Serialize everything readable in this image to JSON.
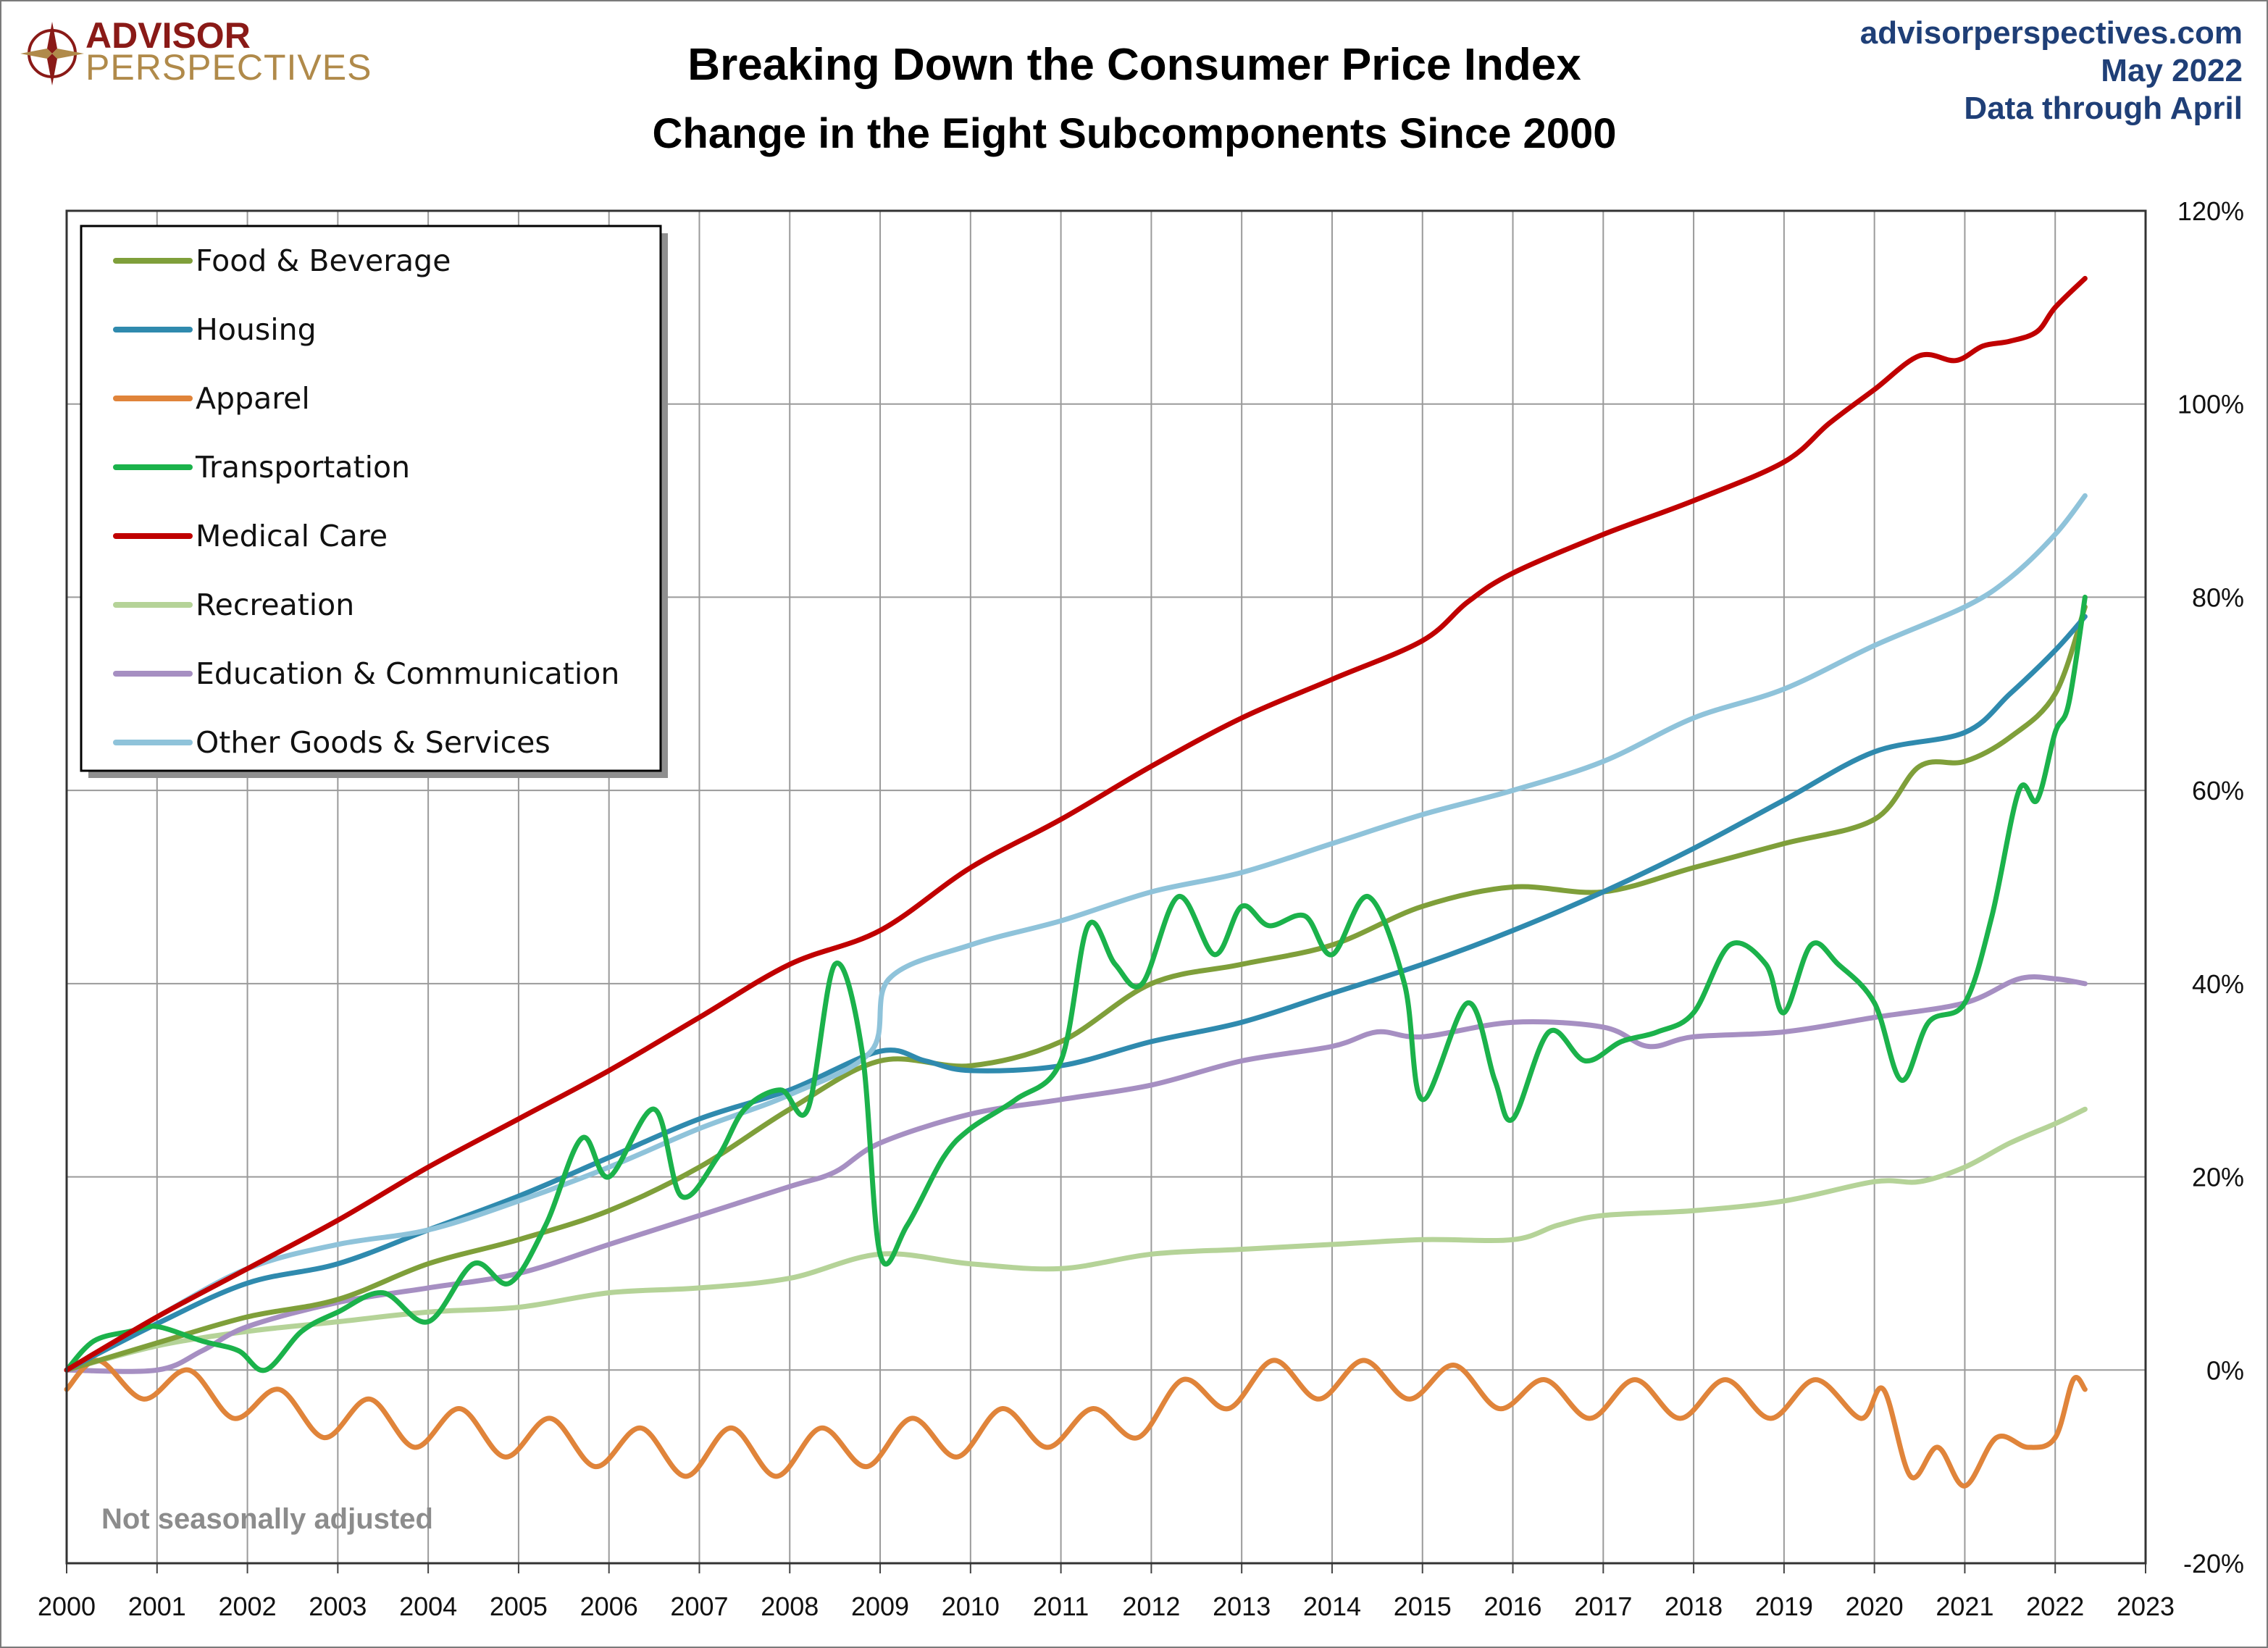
{
  "header": {
    "logo_line1": "ADVISOR",
    "logo_line2": "PERSPECTIVES",
    "site": "advisorperspectives.com",
    "date": "May 2022",
    "data_note": "Data through April"
  },
  "note": "Not seasonally adjusted",
  "colors": {
    "food": "#7f9f3a",
    "housing": "#2f8aae",
    "apparel": "#e0843a",
    "transportation": "#1bb24b",
    "medical": "#c00000",
    "recreation": "#b5d398",
    "education": "#a68fc2",
    "other": "#8fc3da",
    "header_blue": "#1f3f77",
    "grid": "#9a9a9a"
  },
  "chart_data": {
    "type": "line",
    "title": "Breaking Down the Consumer Price Index",
    "subtitle": "Change in the Eight Subcomponents Since 2000",
    "xlim": [
      2000,
      2023
    ],
    "ylim": [
      -20,
      120
    ],
    "x_ticks": [
      "2000",
      "2001",
      "2002",
      "2003",
      "2004",
      "2005",
      "2006",
      "2007",
      "2008",
      "2009",
      "2010",
      "2011",
      "2012",
      "2013",
      "2014",
      "2015",
      "2016",
      "2017",
      "2018",
      "2019",
      "2020",
      "2021",
      "2022",
      "2023"
    ],
    "y_ticks": [
      "-20%",
      "0%",
      "20%",
      "40%",
      "60%",
      "80%",
      "100%",
      "120%"
    ],
    "y_axis_side": "right",
    "grid": true,
    "legend_position": "top-left",
    "series": [
      {
        "key": "food",
        "name": "Food & Beverage",
        "x": [
          2000,
          2001,
          2002,
          2003,
          2004,
          2005,
          2006,
          2007,
          2008,
          2009,
          2010,
          2011,
          2012,
          2013,
          2014,
          2015,
          2016,
          2017,
          2018,
          2019,
          2020,
          2020.5,
          2021,
          2021.5,
          2022,
          2022.33
        ],
        "values": [
          0,
          2.8,
          5.5,
          7.3,
          11,
          13.5,
          16.5,
          21,
          27,
          32,
          31.5,
          34,
          40,
          42,
          44,
          48,
          50,
          49.5,
          52,
          54.5,
          57,
          62.5,
          63,
          65.5,
          70,
          79
        ]
      },
      {
        "key": "housing",
        "name": "Housing",
        "x": [
          2000,
          2001,
          2002,
          2003,
          2004,
          2005,
          2006,
          2007,
          2008,
          2009,
          2009.5,
          2010,
          2011,
          2012,
          2013,
          2014,
          2015,
          2016,
          2017,
          2018,
          2019,
          2020,
          2021,
          2021.5,
          2022,
          2022.33
        ],
        "values": [
          0,
          4.8,
          9,
          11,
          14.5,
          18,
          22,
          26,
          29,
          33,
          32,
          31,
          31.5,
          34,
          36,
          39,
          42,
          45.5,
          49.5,
          54,
          59,
          64,
          66,
          70,
          74.5,
          78
        ]
      },
      {
        "key": "apparel",
        "name": "Apparel",
        "x": [
          2000,
          2000.35,
          2000.85,
          2001.35,
          2001.85,
          2002.35,
          2002.85,
          2003.35,
          2003.85,
          2004.35,
          2004.85,
          2005.35,
          2005.85,
          2006.35,
          2006.85,
          2007.35,
          2007.85,
          2008.35,
          2008.85,
          2009.35,
          2009.85,
          2010.35,
          2010.85,
          2011.35,
          2011.85,
          2012.35,
          2012.85,
          2013.35,
          2013.85,
          2014.35,
          2014.85,
          2015.35,
          2015.85,
          2016.35,
          2016.85,
          2017.35,
          2017.85,
          2018.35,
          2018.85,
          2019.35,
          2019.85,
          2020.1,
          2020.4,
          2020.7,
          2021,
          2021.35,
          2021.7,
          2022,
          2022.2,
          2022.33
        ],
        "values": [
          -2,
          1,
          -3,
          0,
          -5,
          -2,
          -7,
          -3,
          -8,
          -4,
          -9,
          -5,
          -10,
          -6,
          -11,
          -6,
          -11,
          -6,
          -10,
          -5,
          -9,
          -4,
          -8,
          -4,
          -7,
          -1,
          -4,
          1,
          -3,
          1,
          -3,
          0.5,
          -4,
          -1,
          -5,
          -1,
          -5,
          -1,
          -5,
          -1,
          -5,
          -2,
          -11,
          -8,
          -12,
          -7,
          -8,
          -7,
          -1,
          -2
        ]
      },
      {
        "key": "transportation",
        "name": "Transportation",
        "x": [
          2000,
          2000.3,
          2000.7,
          2001,
          2001.5,
          2001.9,
          2002.2,
          2002.6,
          2003,
          2003.5,
          2004,
          2004.5,
          2004.9,
          2005.3,
          2005.7,
          2006,
          2006.5,
          2006.8,
          2007.2,
          2007.5,
          2007.9,
          2008.2,
          2008.5,
          2008.8,
          2009,
          2009.3,
          2009.7,
          2010,
          2010.5,
          2011,
          2011.3,
          2011.6,
          2011.9,
          2012.3,
          2012.7,
          2013,
          2013.3,
          2013.7,
          2014,
          2014.4,
          2014.8,
          2015,
          2015.5,
          2015.8,
          2016,
          2016.4,
          2016.8,
          2017.2,
          2017.6,
          2018,
          2018.4,
          2018.8,
          2019,
          2019.3,
          2019.6,
          2020,
          2020.3,
          2020.6,
          2021,
          2021.3,
          2021.6,
          2021.8,
          2022,
          2022.15,
          2022.33
        ],
        "values": [
          0,
          3,
          4,
          4.5,
          3,
          2,
          0,
          4,
          6,
          8,
          5,
          11,
          9,
          15,
          24,
          20,
          27,
          18,
          22,
          27,
          29,
          27,
          42,
          33,
          12,
          15,
          22,
          25,
          28,
          32,
          46,
          42,
          40,
          49,
          43,
          48,
          46,
          47,
          43,
          49,
          40,
          28,
          38,
          30,
          26,
          35,
          32,
          34,
          35,
          37,
          44,
          42,
          37,
          44,
          42,
          38,
          30,
          36,
          38,
          47,
          60,
          59,
          66,
          69,
          80
        ]
      },
      {
        "key": "medical",
        "name": "Medical Care",
        "x": [
          2000,
          2001,
          2002,
          2003,
          2004,
          2005,
          2006,
          2007,
          2008,
          2009,
          2010,
          2011,
          2012,
          2013,
          2014,
          2015,
          2015.5,
          2016,
          2017,
          2018,
          2019,
          2019.5,
          2020,
          2020.5,
          2020.9,
          2021.2,
          2021.5,
          2021.8,
          2022,
          2022.33
        ],
        "values": [
          0,
          5.5,
          10.5,
          15.5,
          21,
          26,
          31,
          36.5,
          42,
          45.5,
          52,
          57,
          62.5,
          67.5,
          71.5,
          75.5,
          79.5,
          82.5,
          86.5,
          90,
          94,
          98,
          101.5,
          105,
          104.5,
          106,
          106.5,
          107.5,
          110,
          113
        ]
      },
      {
        "key": "recreation",
        "name": "Recreation",
        "x": [
          2000,
          2001,
          2002,
          2003,
          2004,
          2005,
          2006,
          2007,
          2008,
          2009,
          2010,
          2011,
          2012,
          2013,
          2014,
          2015,
          2016,
          2016.5,
          2017,
          2018,
          2019,
          2020,
          2020.5,
          2021,
          2021.5,
          2022,
          2022.33
        ],
        "values": [
          0,
          2.5,
          4,
          5,
          6,
          6.5,
          8,
          8.5,
          9.5,
          12,
          11,
          10.5,
          12,
          12.5,
          13,
          13.5,
          13.5,
          15,
          16,
          16.5,
          17.5,
          19.5,
          19.5,
          21,
          23.5,
          25.5,
          27
        ]
      },
      {
        "key": "education",
        "name": "Education & Communication",
        "x": [
          2000,
          2001,
          2001.5,
          2002,
          2003,
          2004,
          2005,
          2006,
          2007,
          2008,
          2008.5,
          2009,
          2010,
          2011,
          2012,
          2013,
          2014,
          2014.5,
          2015,
          2016,
          2017,
          2017.5,
          2018,
          2019,
          2020,
          2021,
          2021.6,
          2022,
          2022.33
        ],
        "values": [
          0,
          0,
          2,
          4.5,
          7,
          8.5,
          10,
          13,
          16,
          19,
          20.5,
          23.5,
          26.5,
          28,
          29.5,
          32,
          33.5,
          35,
          34.5,
          36,
          35.5,
          33.5,
          34.5,
          35,
          36.5,
          38,
          40.5,
          40.5,
          40
        ]
      },
      {
        "key": "other",
        "name": "Other Goods & Services",
        "x": [
          2000,
          2001,
          2002,
          2003,
          2004,
          2005,
          2006,
          2007,
          2008,
          2008.9,
          2009.1,
          2010,
          2011,
          2012,
          2013,
          2014,
          2015,
          2016,
          2017,
          2018,
          2019,
          2020,
          2021,
          2021.5,
          2022,
          2022.33
        ],
        "values": [
          0,
          5.5,
          10.5,
          13,
          14.5,
          17.5,
          21,
          25,
          28.5,
          33,
          40.5,
          44,
          46.5,
          49.5,
          51.5,
          54.5,
          57.5,
          60,
          63,
          67.5,
          70.5,
          75,
          79,
          82,
          86.5,
          90.5
        ]
      }
    ]
  }
}
